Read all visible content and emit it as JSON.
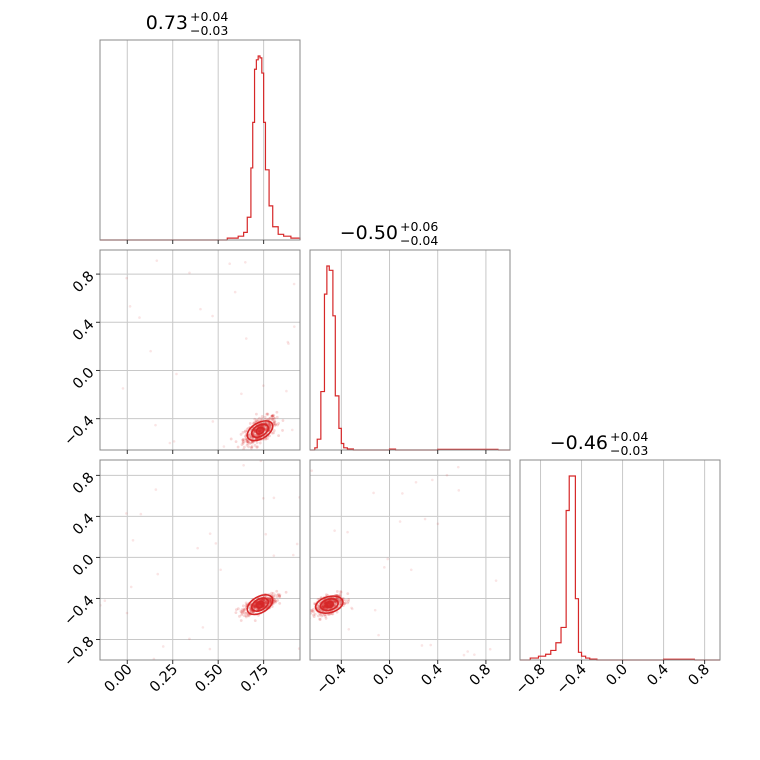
{
  "chart_data": {
    "type": "corner",
    "color": "#d62728",
    "grid": true,
    "parameters": [
      {
        "title": {
          "base": "0.73",
          "upper": "+0.04",
          "lower": "−0.03"
        },
        "range": [
          -0.15,
          0.95
        ],
        "ticks": [
          0.0,
          0.25,
          0.5,
          0.75
        ],
        "tick_labels": [
          "0.00",
          "0.25",
          "0.50",
          "0.75"
        ],
        "hist": {
          "bins": [
            0.55,
            0.58,
            0.61,
            0.64,
            0.66,
            0.68,
            0.69,
            0.7,
            0.71,
            0.72,
            0.73,
            0.74,
            0.75,
            0.76,
            0.78,
            0.8,
            0.83,
            0.86,
            0.9,
            0.95
          ],
          "counts": [
            1,
            1,
            2,
            4,
            12,
            38,
            62,
            90,
            95,
            97,
            96,
            88,
            62,
            37,
            18,
            7,
            3,
            2,
            1
          ]
        }
      },
      {
        "title": {
          "base": "−0.50",
          "upper": "+0.06",
          "lower": "−0.04"
        },
        "range": [
          -0.66,
          1.0
        ],
        "ticks": [
          -0.4,
          0.0,
          0.4,
          0.8
        ],
        "tick_labels": [
          "−0.4",
          "0.0",
          "0.4",
          "0.8"
        ],
        "hist": {
          "bins": [
            -0.62,
            -0.6,
            -0.57,
            -0.54,
            -0.52,
            -0.5,
            -0.47,
            -0.45,
            -0.42,
            -0.4,
            -0.38,
            -0.35,
            -0.3,
            0.0,
            0.05,
            0.4,
            0.6,
            0.8,
            0.9
          ],
          "counts": [
            1,
            5,
            27,
            72,
            85,
            83,
            62,
            25,
            10,
            3,
            1,
            0.5,
            0,
            0.4,
            0,
            0.3,
            0.3,
            0.3
          ]
        }
      },
      {
        "title": {
          "base": "−0.46",
          "upper": "+0.04",
          "lower": "−0.03"
        },
        "range": [
          -1.0,
          0.95
        ],
        "ticks": [
          -0.8,
          -0.4,
          0.0,
          0.4,
          0.8
        ],
        "tick_labels": [
          "−0.8",
          "−0.4",
          "0.0",
          "0.4",
          "0.8"
        ],
        "hist": {
          "bins": [
            -0.9,
            -0.82,
            -0.75,
            -0.7,
            -0.65,
            -0.6,
            -0.55,
            -0.52,
            -0.49,
            -0.46,
            -0.43,
            -0.4,
            -0.36,
            -0.32,
            -0.25,
            -0.15,
            0.4,
            0.5,
            0.6,
            0.7
          ],
          "counts": [
            1,
            2,
            3,
            5,
            9,
            17,
            78,
            96,
            96,
            32,
            4,
            2,
            1,
            0.5,
            0,
            0,
            0.4,
            0.4,
            0.4
          ]
        }
      }
    ]
  }
}
